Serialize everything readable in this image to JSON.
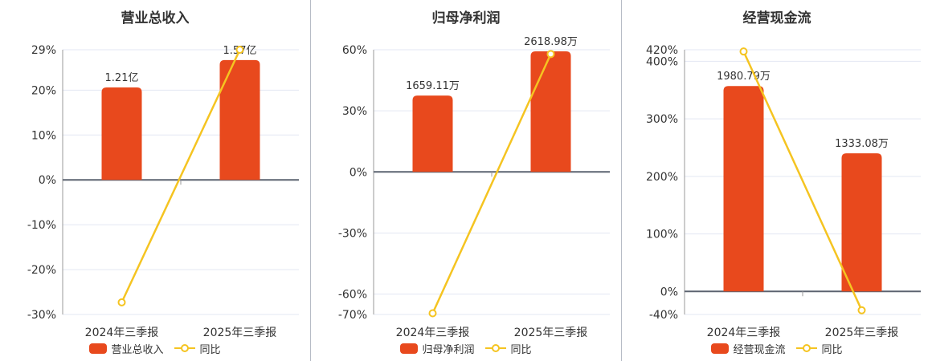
{
  "page": {
    "background": "#ffffff",
    "description_note": "Three quarterly-report mini charts: bars with value labels plus yellow YoY line"
  },
  "colors": {
    "bar": "#e8491d",
    "line": "#f5c421",
    "grid": "#e3e7f3",
    "zero_axis": "#5c6370",
    "axis_line": "#999999",
    "text": "#333333",
    "separator": "#b7bcc6",
    "marker_fill": "#ffffff"
  },
  "chart_data": [
    {
      "type": "bar+line",
      "title": "营业总收入",
      "categories": [
        "2024年三季报",
        "2025年三季报"
      ],
      "bars": {
        "name": "营业总收入",
        "unit": "亿",
        "values": [
          1.21,
          1.57
        ],
        "labels": [
          "1.21亿",
          "1.57亿"
        ],
        "tops_on_pct_axis_est": [
          20.6,
          26.7
        ]
      },
      "line": {
        "name": "同比",
        "values_pct_est": [
          -27.3,
          29.0
        ]
      },
      "y_axis": {
        "min": -30,
        "max": 29,
        "ticks": [
          {
            "label": "29%",
            "value": 29
          },
          {
            "label": "20%",
            "value": 20
          },
          {
            "label": "10%",
            "value": 10
          },
          {
            "label": "0%",
            "value": 0
          },
          {
            "label": "-10%",
            "value": -10
          },
          {
            "label": "-20%",
            "value": -20
          },
          {
            "label": "-30%",
            "value": -30
          }
        ]
      },
      "legend": [
        "营业总收入",
        "同比"
      ]
    },
    {
      "type": "bar+line",
      "title": "归母净利润",
      "categories": [
        "2024年三季报",
        "2025年三季报"
      ],
      "bars": {
        "name": "归母净利润",
        "unit": "万",
        "values": [
          1659.11,
          2618.98
        ],
        "labels": [
          "1659.11万",
          "2618.98万"
        ],
        "tops_on_pct_axis_est": [
          37.5,
          59.2
        ]
      },
      "line": {
        "name": "同比",
        "values_pct_est": [
          -69.4,
          57.9
        ]
      },
      "y_axis": {
        "min": -70,
        "max": 60,
        "ticks": [
          {
            "label": "60%",
            "value": 60
          },
          {
            "label": "30%",
            "value": 30
          },
          {
            "label": "0%",
            "value": 0
          },
          {
            "label": "-30%",
            "value": -30
          },
          {
            "label": "-60%",
            "value": -60
          },
          {
            "label": "-70%",
            "value": -70
          }
        ]
      },
      "legend": [
        "归母净利润",
        "同比"
      ]
    },
    {
      "type": "bar+line",
      "title": "经营现金流",
      "categories": [
        "2024年三季报",
        "2025年三季报"
      ],
      "bars": {
        "name": "经营现金流",
        "unit": "万",
        "values": [
          1980.79,
          1333.08
        ],
        "labels": [
          "1980.79万",
          "1333.08万"
        ],
        "tops_on_pct_axis_est": [
          357,
          240
        ]
      },
      "line": {
        "name": "同比",
        "values_pct_est": [
          417.0,
          -32.7
        ]
      },
      "y_axis": {
        "min": -40,
        "max": 420,
        "ticks": [
          {
            "label": "420%",
            "value": 420
          },
          {
            "label": "400%",
            "value": 400
          },
          {
            "label": "300%",
            "value": 300
          },
          {
            "label": "200%",
            "value": 200
          },
          {
            "label": "100%",
            "value": 100
          },
          {
            "label": "0%",
            "value": 0
          },
          {
            "label": "-40%",
            "value": -40
          }
        ]
      },
      "legend": [
        "经营现金流",
        "同比"
      ]
    }
  ]
}
